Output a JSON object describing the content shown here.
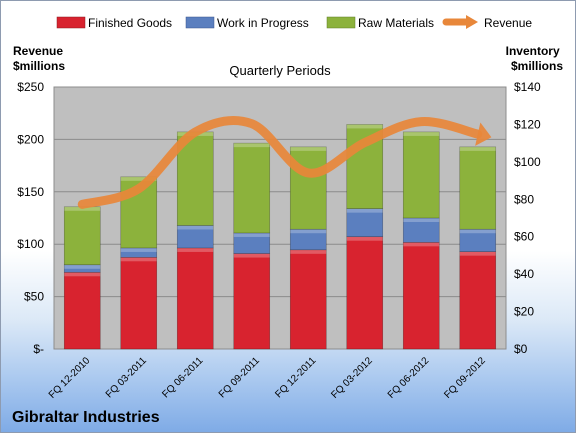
{
  "company": "Gibraltar Industries",
  "chart_data": {
    "type": "bar",
    "stacked": true,
    "title": "Quarterly Periods",
    "categories": [
      "FQ 12-2010",
      "FQ 03-2011",
      "FQ 06-2011",
      "FQ 09-2011",
      "FQ 12-2011",
      "FQ 03-2012",
      "FQ 06-2012",
      "FQ 09-2012"
    ],
    "series": [
      {
        "name": "Finished Goods",
        "axis": "right",
        "color": "#d8232f",
        "values": [
          41,
          49,
          54,
          51,
          53,
          60,
          57,
          52
        ]
      },
      {
        "name": "Work in Progress",
        "axis": "right",
        "color": "#5b7fbf",
        "values": [
          4,
          5,
          12,
          11,
          11,
          15,
          13,
          12
        ]
      },
      {
        "name": "Raw Materials",
        "axis": "right",
        "color": "#8cb23c",
        "values": [
          31,
          38,
          50,
          48,
          44,
          45,
          46,
          44
        ]
      }
    ],
    "line_series": {
      "name": "Revenue",
      "axis": "left",
      "color": "#e8873a",
      "values": [
        138,
        153,
        207,
        215,
        168,
        197,
        217,
        205
      ]
    },
    "left_axis": {
      "label": "Revenue $millions",
      "ylim": [
        0,
        250
      ],
      "ticks": [
        "$-",
        "$50",
        "$100",
        "$150",
        "$200",
        "$250"
      ],
      "tick_values": [
        0,
        50,
        100,
        150,
        200,
        250
      ]
    },
    "right_axis": {
      "label": "Inventory $millions",
      "ylim": [
        0,
        140
      ],
      "ticks": [
        "$0",
        "$20",
        "$40",
        "$60",
        "$80",
        "$100",
        "$120",
        "$140"
      ],
      "tick_values": [
        0,
        20,
        40,
        60,
        80,
        100,
        120,
        140
      ]
    },
    "legend_position": "top",
    "grid": true
  },
  "left_axis_label_lines": [
    "Revenue",
    "$millions"
  ],
  "right_axis_label_lines": [
    "Inventory",
    "$millions"
  ]
}
